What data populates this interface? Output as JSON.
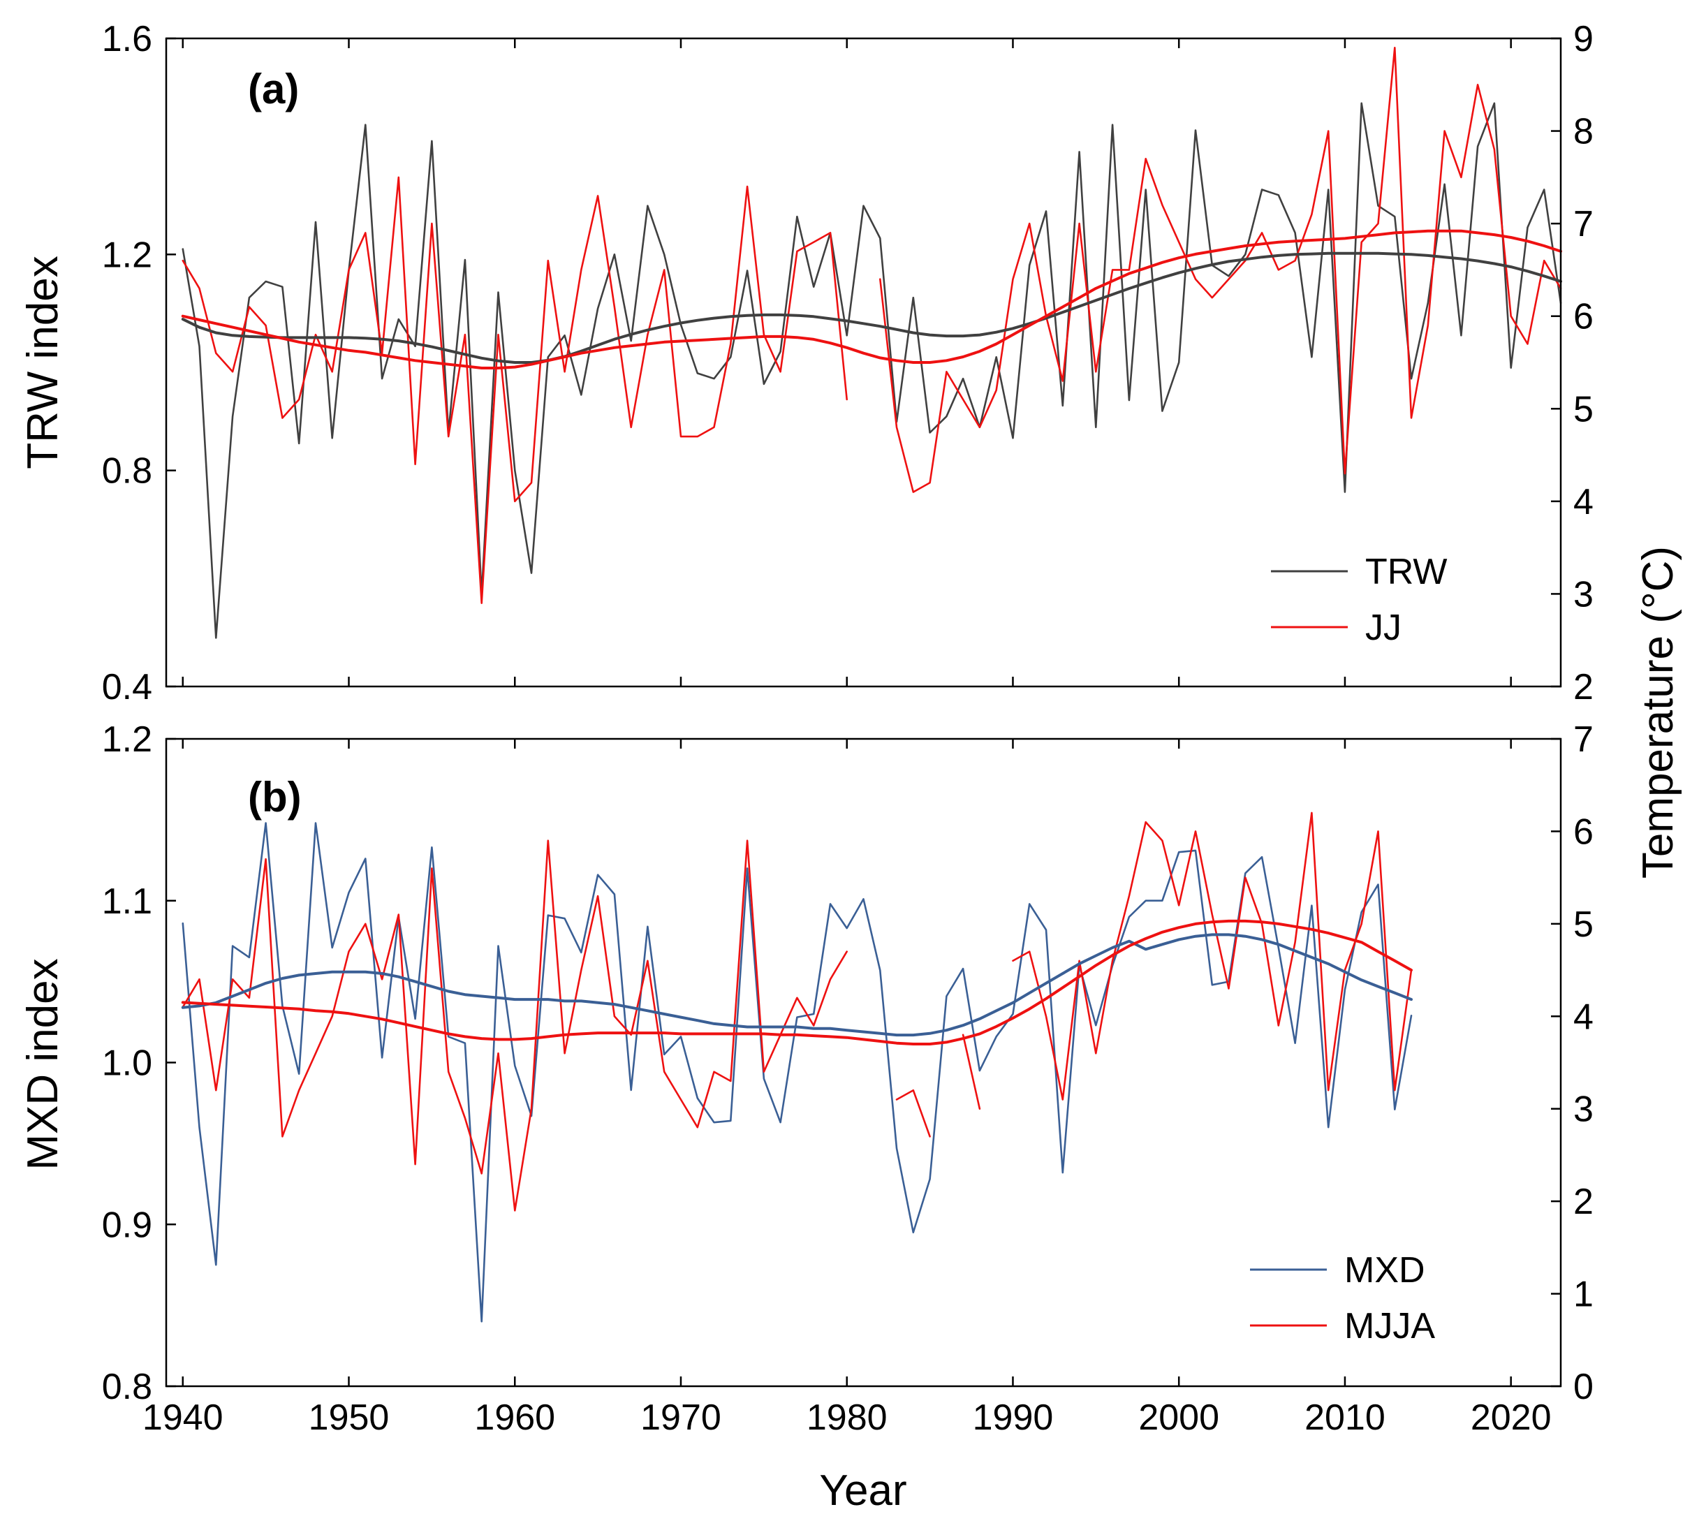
{
  "chart_data": [
    {
      "type": "line",
      "panel_label": "(a)",
      "xlabel": "",
      "ylabel": "TRW index",
      "y2label": "Temperature (°C)",
      "xlim": [
        1939,
        2023
      ],
      "ylim": [
        0.4,
        1.6
      ],
      "y2lim": [
        2,
        9
      ],
      "x_ticks": [
        1940,
        1950,
        1960,
        1970,
        1980,
        1990,
        2000,
        2010,
        2020
      ],
      "y_ticks": [
        0.4,
        0.8,
        1.2,
        1.6
      ],
      "y_tick_labels": [
        "0.4",
        "0.8",
        "1.2",
        "1.6"
      ],
      "y2_ticks": [
        2,
        3,
        4,
        5,
        6,
        7,
        8,
        9
      ],
      "y2_tick_labels": [
        "2",
        "3",
        "4",
        "5",
        "6",
        "7",
        "8",
        "9"
      ],
      "legend": {
        "position": "bottom-right",
        "entries": [
          "TRW",
          "JJ"
        ]
      },
      "series": [
        {
          "name": "TRW",
          "color": "#404040",
          "axis": "left",
          "start_year": 1940,
          "values": [
            1.21,
            1.03,
            0.49,
            0.9,
            1.12,
            1.15,
            1.14,
            0.85,
            1.26,
            0.86,
            1.17,
            1.44,
            0.97,
            1.08,
            1.03,
            1.41,
            0.87,
            1.19,
            0.57,
            1.13,
            0.8,
            0.61,
            1.01,
            1.05,
            0.94,
            1.1,
            1.2,
            1.04,
            1.29,
            1.2,
            1.07,
            0.98,
            0.97,
            1.01,
            1.17,
            0.96,
            1.02,
            1.27,
            1.14,
            1.24,
            1.05,
            1.29,
            1.23,
            0.89,
            1.12,
            0.87,
            0.9,
            0.97,
            0.88,
            1.01,
            0.86,
            1.18,
            1.28,
            0.92,
            1.39,
            0.88,
            1.44,
            0.93,
            1.32,
            0.91,
            1.0,
            1.43,
            1.18,
            1.16,
            1.2,
            1.32,
            1.31,
            1.24,
            1.01,
            1.32,
            0.76,
            1.48,
            1.29,
            1.27,
            0.97,
            1.11,
            1.33,
            1.05,
            1.4,
            1.48,
            0.99,
            1.25,
            1.32,
            1.11
          ]
        },
        {
          "name": "JJ",
          "color": "#ee1111",
          "axis": "right",
          "start_year": 1940,
          "values": [
            6.6,
            6.3,
            5.6,
            5.4,
            6.1,
            5.9,
            4.9,
            5.1,
            5.8,
            5.4,
            6.5,
            6.9,
            5.6,
            7.5,
            4.4,
            7.0,
            4.7,
            5.8,
            2.9,
            5.8,
            4.0,
            4.2,
            6.6,
            5.4,
            6.5,
            7.3,
            6.1,
            4.8,
            5.8,
            6.5,
            4.7,
            4.7,
            4.8,
            5.7,
            7.4,
            5.8,
            5.4,
            6.7,
            6.8,
            6.9,
            5.1,
            null,
            6.4,
            4.8,
            4.1,
            4.2,
            5.4,
            5.1,
            4.8,
            5.2,
            6.4,
            7.0,
            6.0,
            5.3,
            7.0,
            5.4,
            6.5,
            6.5,
            7.7,
            7.2,
            6.8,
            6.4,
            6.2,
            6.4,
            6.6,
            6.9,
            6.5,
            6.6,
            7.1,
            8.0,
            4.3,
            6.8,
            7.0,
            8.9,
            4.9,
            5.9,
            8.0,
            7.5,
            8.5,
            7.8,
            6.0,
            5.7,
            6.6,
            6.3
          ]
        },
        {
          "name": "TRW smooth",
          "color": "#404040",
          "axis": "left",
          "start_year": 1940,
          "smooth": true,
          "values": [
            1.08,
            1.065,
            1.055,
            1.05,
            1.048,
            1.047,
            1.046,
            1.046,
            1.046,
            1.046,
            1.046,
            1.045,
            1.043,
            1.04,
            1.035,
            1.029,
            1.022,
            1.015,
            1.008,
            1.003,
            1.0,
            1.0,
            1.004,
            1.011,
            1.021,
            1.032,
            1.043,
            1.052,
            1.06,
            1.067,
            1.073,
            1.078,
            1.082,
            1.085,
            1.087,
            1.088,
            1.088,
            1.087,
            1.085,
            1.081,
            1.077,
            1.072,
            1.067,
            1.061,
            1.055,
            1.051,
            1.049,
            1.049,
            1.051,
            1.056,
            1.063,
            1.072,
            1.082,
            1.093,
            1.104,
            1.115,
            1.126,
            1.137,
            1.147,
            1.157,
            1.166,
            1.174,
            1.181,
            1.187,
            1.191,
            1.195,
            1.198,
            1.2,
            1.201,
            1.202,
            1.202,
            1.202,
            1.202,
            1.201,
            1.2,
            1.198,
            1.195,
            1.192,
            1.188,
            1.183,
            1.177,
            1.169,
            1.16,
            1.15
          ]
        },
        {
          "name": "JJ smooth",
          "color": "#ee1111",
          "axis": "right",
          "start_year": 1940,
          "smooth": true,
          "values": [
            6.0,
            5.96,
            5.92,
            5.88,
            5.84,
            5.8,
            5.76,
            5.72,
            5.69,
            5.66,
            5.63,
            5.61,
            5.58,
            5.55,
            5.52,
            5.5,
            5.48,
            5.46,
            5.44,
            5.44,
            5.45,
            5.48,
            5.52,
            5.56,
            5.6,
            5.63,
            5.66,
            5.68,
            5.7,
            5.72,
            5.73,
            5.74,
            5.75,
            5.76,
            5.77,
            5.78,
            5.78,
            5.77,
            5.75,
            5.71,
            5.66,
            5.6,
            5.55,
            5.52,
            5.5,
            5.5,
            5.52,
            5.56,
            5.62,
            5.7,
            5.8,
            5.9,
            6.0,
            6.1,
            6.2,
            6.3,
            6.38,
            6.46,
            6.52,
            6.58,
            6.63,
            6.67,
            6.7,
            6.73,
            6.76,
            6.78,
            6.8,
            6.81,
            6.82,
            6.83,
            6.84,
            6.86,
            6.88,
            6.9,
            6.91,
            6.92,
            6.92,
            6.92,
            6.9,
            6.88,
            6.85,
            6.81,
            6.76,
            6.7
          ]
        }
      ]
    },
    {
      "type": "line",
      "panel_label": "(b)",
      "xlabel": "Year",
      "ylabel": "MXD index",
      "y2label": "Temperature (°C)",
      "xlim": [
        1939,
        2023
      ],
      "ylim": [
        0.8,
        1.2
      ],
      "y2lim": [
        0,
        7
      ],
      "x_ticks": [
        1940,
        1950,
        1960,
        1970,
        1980,
        1990,
        2000,
        2010,
        2020
      ],
      "x_tick_labels": [
        "1940",
        "1950",
        "1960",
        "1970",
        "1980",
        "1990",
        "2000",
        "2010",
        "2020"
      ],
      "y_ticks": [
        0.8,
        0.9,
        1.0,
        1.1,
        1.2
      ],
      "y_tick_labels": [
        "0.8",
        "0.9",
        "1.0",
        "1.1",
        "1.2"
      ],
      "y2_ticks": [
        0,
        1,
        2,
        3,
        4,
        5,
        6,
        7
      ],
      "y2_tick_labels": [
        "0",
        "1",
        "2",
        "3",
        "4",
        "5",
        "6",
        "7"
      ],
      "legend": {
        "position": "bottom-right",
        "entries": [
          "MXD",
          "MJJA"
        ]
      },
      "series": [
        {
          "name": "MXD",
          "color": "#3a5f95",
          "axis": "left",
          "start_year": 1940,
          "values": [
            1.086,
            0.96,
            0.875,
            1.072,
            1.065,
            1.148,
            1.035,
            0.993,
            1.148,
            1.071,
            1.105,
            1.126,
            1.003,
            1.09,
            1.027,
            1.133,
            1.016,
            1.012,
            0.84,
            1.072,
            0.998,
            0.967,
            1.091,
            1.089,
            1.068,
            1.116,
            1.104,
            0.983,
            1.084,
            1.005,
            1.016,
            0.978,
            0.963,
            0.964,
            1.12,
            0.99,
            0.963,
            1.028,
            1.03,
            1.098,
            1.083,
            1.101,
            1.057,
            0.947,
            0.895,
            0.928,
            1.041,
            1.058,
            0.995,
            1.016,
            1.03,
            1.098,
            1.082,
            0.932,
            1.06,
            1.023,
            1.06,
            1.09,
            1.1,
            1.1,
            1.13,
            1.131,
            1.048,
            1.05,
            1.117,
            1.127,
            1.071,
            1.012,
            1.097,
            0.96,
            1.045,
            1.093,
            1.11,
            0.971,
            1.029
          ]
        },
        {
          "name": "MJJA",
          "color": "#ee1111",
          "axis": "right",
          "start_year": 1940,
          "values": [
            4.1,
            4.4,
            3.2,
            4.4,
            4.2,
            5.7,
            2.7,
            3.2,
            3.6,
            4.0,
            4.7,
            5.0,
            4.4,
            5.1,
            2.4,
            5.6,
            3.4,
            2.9,
            2.3,
            3.6,
            1.9,
            3.0,
            5.9,
            3.6,
            4.5,
            5.3,
            4.0,
            3.8,
            4.6,
            3.4,
            3.1,
            2.8,
            3.4,
            3.3,
            5.9,
            3.4,
            3.8,
            4.2,
            3.9,
            4.4,
            4.7,
            null,
            null,
            3.1,
            3.2,
            2.7,
            null,
            3.8,
            3.0,
            null,
            4.6,
            4.7,
            4.0,
            3.1,
            4.6,
            3.6,
            4.6,
            5.3,
            6.1,
            5.9,
            5.2,
            6.0,
            5.1,
            4.3,
            5.5,
            5.0,
            3.9,
            4.8,
            6.2,
            3.2,
            4.5,
            5.0,
            6.0,
            3.2,
            4.5
          ]
        },
        {
          "name": "MXD smooth",
          "color": "#3a5f95",
          "axis": "left",
          "start_year": 1940,
          "smooth": true,
          "values": [
            1.034,
            1.035,
            1.037,
            1.041,
            1.045,
            1.049,
            1.052,
            1.054,
            1.055,
            1.056,
            1.056,
            1.056,
            1.055,
            1.053,
            1.05,
            1.047,
            1.044,
            1.042,
            1.041,
            1.04,
            1.039,
            1.039,
            1.039,
            1.038,
            1.038,
            1.037,
            1.036,
            1.034,
            1.032,
            1.03,
            1.028,
            1.026,
            1.024,
            1.023,
            1.022,
            1.022,
            1.022,
            1.022,
            1.021,
            1.021,
            1.02,
            1.019,
            1.018,
            1.017,
            1.017,
            1.018,
            1.02,
            1.023,
            1.027,
            1.032,
            1.037,
            1.043,
            1.049,
            1.055,
            1.061,
            1.066,
            1.071,
            1.075,
            1.07,
            1.073,
            1.076,
            1.078,
            1.079,
            1.079,
            1.078,
            1.076,
            1.073,
            1.069,
            1.065,
            1.061,
            1.056,
            1.051,
            1.047,
            1.043,
            1.039
          ]
        },
        {
          "name": "MJJA smooth",
          "color": "#ee1111",
          "axis": "right",
          "start_year": 1940,
          "smooth": true,
          "values": [
            4.15,
            4.14,
            4.13,
            4.12,
            4.11,
            4.1,
            4.09,
            4.08,
            4.06,
            4.05,
            4.03,
            4.0,
            3.97,
            3.93,
            3.89,
            3.85,
            3.81,
            3.78,
            3.76,
            3.75,
            3.75,
            3.76,
            3.78,
            3.8,
            3.81,
            3.82,
            3.82,
            3.82,
            3.82,
            3.82,
            3.81,
            3.81,
            3.81,
            3.81,
            3.81,
            3.81,
            3.8,
            3.8,
            3.79,
            3.78,
            3.77,
            3.75,
            3.73,
            3.71,
            3.7,
            3.7,
            3.72,
            3.76,
            3.81,
            3.89,
            3.98,
            4.08,
            4.19,
            4.31,
            4.43,
            4.55,
            4.66,
            4.76,
            4.84,
            4.91,
            4.96,
            5.0,
            5.02,
            5.03,
            5.03,
            5.02,
            5.0,
            4.97,
            4.94,
            4.9,
            4.85,
            4.8,
            4.7,
            4.6,
            4.5
          ]
        }
      ]
    }
  ],
  "shared_y2_title": "Temperature (°C)"
}
